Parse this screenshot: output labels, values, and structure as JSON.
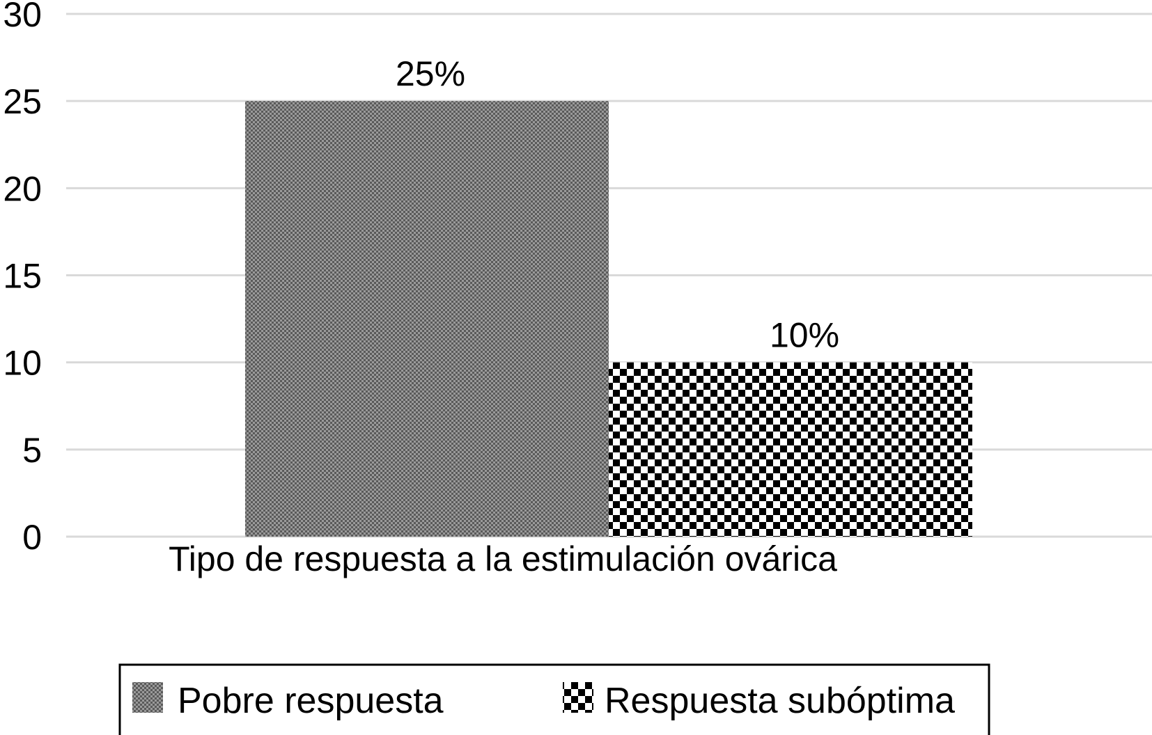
{
  "chart_data": {
    "type": "bar",
    "categories": [
      "Tipo de respuesta a la estimulación ovárica"
    ],
    "series": [
      {
        "name": "Pobre respuesta",
        "values": [
          25
        ],
        "data_label": "25%",
        "pattern": "fine-checker",
        "color": "#000000"
      },
      {
        "name": "Respuesta subóptima",
        "values": [
          10
        ],
        "data_label": "10%",
        "pattern": "coarse-checker",
        "color": "#000000"
      }
    ],
    "title": "",
    "xlabel": "",
    "ylabel": "",
    "ylim": [
      0,
      30
    ],
    "yticks": [
      "0",
      "5",
      "10",
      "15",
      "20",
      "25",
      "30"
    ],
    "grid": true,
    "gridline_color": "#d9d9d9",
    "legend_position": "bottom"
  }
}
